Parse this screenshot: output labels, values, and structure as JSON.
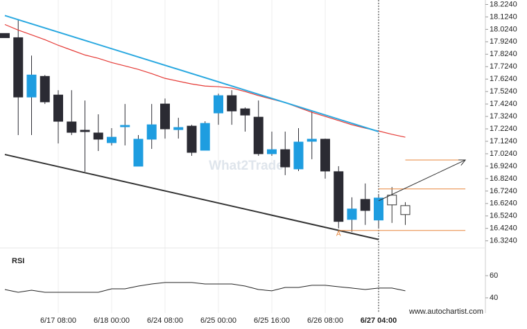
{
  "chart_data": [
    {
      "type": "candlestick",
      "categories": [
        null,
        null,
        null,
        null,
        "6/17 08:00",
        null,
        null,
        null,
        "6/18 00:00",
        null,
        null,
        null,
        "6/24 08:00",
        null,
        null,
        null,
        "6/25 00:00",
        null,
        null,
        null,
        "6/25 16:00",
        null,
        null,
        null,
        "6/26 08:00",
        null,
        null,
        null,
        "6/27 04:00",
        null,
        null
      ],
      "open": [
        17.991,
        17.957,
        17.48,
        17.646,
        17.496,
        17.28,
        17.213,
        17.191,
        17.113,
        17.241,
        16.924,
        17.141,
        17.424,
        17.218,
        17.246,
        17.052,
        17.352,
        17.491,
        17.385,
        17.318,
        17.024,
        17.057,
        16.902,
        17.124,
        17.141,
        16.88,
        16.496,
        16.657,
        16.491,
        16.613,
        16.535
      ],
      "high": [
        17.991,
        18.102,
        17.813,
        17.657,
        17.535,
        17.535,
        17.452,
        17.341,
        17.23,
        17.424,
        17.174,
        17.424,
        17.468,
        17.313,
        17.257,
        17.285,
        17.507,
        17.535,
        17.396,
        17.452,
        17.202,
        17.202,
        17.23,
        17.368,
        17.146,
        16.924,
        16.674,
        16.785,
        16.691,
        16.757,
        16.635
      ],
      "low": [
        17.957,
        17.174,
        17.174,
        17.424,
        17.107,
        17.174,
        16.88,
        17.046,
        17.091,
        17.091,
        16.924,
        17.063,
        17.146,
        17.146,
        17.007,
        17.052,
        17.257,
        17.257,
        17.202,
        17.007,
        17.007,
        16.852,
        16.885,
        16.98,
        16.824,
        16.424,
        16.396,
        16.452,
        16.424,
        16.468,
        16.452
      ],
      "close": [
        17.957,
        17.48,
        17.657,
        17.441,
        17.285,
        17.196,
        17.202,
        17.141,
        17.157,
        17.252,
        17.141,
        17.257,
        17.224,
        17.235,
        17.035,
        17.268,
        17.491,
        17.368,
        17.335,
        17.024,
        17.057,
        16.918,
        17.118,
        17.141,
        16.885,
        16.48,
        16.58,
        16.568,
        16.668,
        16.691,
        16.607
      ],
      "colors": [
        "#2b2b33",
        "#2b2b33",
        "#1e9de0",
        "#2b2b33",
        "#2b2b33",
        "#2b2b33",
        "#2b2b33",
        "#2b2b33",
        "#1e9de0",
        "#1e9de0",
        "#1e9de0",
        "#1e9de0",
        "#2b2b33",
        "#1e9de0",
        "#2b2b33",
        "#1e9de0",
        "#1e9de0",
        "#2b2b33",
        "#2b2b33",
        "#2b2b33",
        "#1e9de0",
        "#2b2b33",
        "#1e9de0",
        "#1e9de0",
        "#2b2b33",
        "#2b2b33",
        "#1e9de0",
        "#2b2b33",
        "#1e9de0",
        "#ffffff",
        "#ffffff"
      ],
      "ma": {
        "color": "#e53935",
        "values": [
          18.063,
          18.018,
          17.98,
          17.941,
          17.896,
          17.857,
          17.818,
          17.791,
          17.757,
          17.73,
          17.702,
          17.668,
          17.63,
          17.607,
          17.585,
          17.568,
          17.563,
          17.552,
          17.524,
          17.491,
          17.463,
          17.435,
          17.396,
          17.357,
          17.324,
          17.291,
          17.257,
          17.23,
          17.207,
          17.18,
          17.157
        ]
      },
      "lines": [
        {
          "color": "#29a8e0",
          "x": [
            0,
            28
          ],
          "values": [
            18.135,
            17.202
          ]
        },
        {
          "color": "#333333",
          "x": [
            0,
            28
          ],
          "values": [
            17.018,
            16.335
          ]
        },
        {
          "color": "#e8863a",
          "x": [
            25,
            34.5
          ],
          "values": [
            16.407,
            16.407
          ]
        },
        {
          "color": "#e8863a",
          "x": [
            28,
            34.5
          ],
          "values": [
            16.741,
            16.741
          ]
        },
        {
          "color": "#e8863a",
          "x": [
            30,
            34.5
          ],
          "values": [
            16.974,
            16.974
          ]
        },
        {
          "color": "#333333",
          "x": [
            28,
            34.5
          ],
          "values": [
            16.646,
            16.974
          ],
          "arrow": true
        }
      ],
      "annotations": [
        {
          "text": "A",
          "x": 25,
          "y": 16.38
        }
      ],
      "vline_x": 28,
      "watermark": "What2Trade",
      "ylim": [
        16.3,
        18.26
      ],
      "yticks": [
        {
          "value": 18.224,
          "label": "18.2240"
        },
        {
          "value": 18.124,
          "label": "18.1240"
        },
        {
          "value": 18.024,
          "label": "18.0240"
        },
        {
          "value": 17.924,
          "label": "17.9240"
        },
        {
          "value": 17.824,
          "label": "17.8240"
        },
        {
          "value": 17.724,
          "label": "17.7240"
        },
        {
          "value": 17.624,
          "label": "17.6240"
        },
        {
          "value": 17.524,
          "label": "17.5240"
        },
        {
          "value": 17.424,
          "label": "17.4240"
        },
        {
          "value": 17.324,
          "label": "17.3240"
        },
        {
          "value": 17.224,
          "label": "17.2240"
        },
        {
          "value": 17.124,
          "label": "17.1240"
        },
        {
          "value": 17.024,
          "label": "17.0240"
        },
        {
          "value": 16.924,
          "label": "16.9240"
        },
        {
          "value": 16.824,
          "label": "16.8240"
        },
        {
          "value": 16.724,
          "label": "16.7240"
        },
        {
          "value": 16.624,
          "label": "16.6240"
        },
        {
          "value": 16.524,
          "label": "16.5240"
        },
        {
          "value": 16.424,
          "label": "16.4240"
        },
        {
          "value": 16.324,
          "label": "16.3240"
        }
      ]
    },
    {
      "type": "line",
      "title": "RSI",
      "color": "#222222",
      "values": [
        47.5,
        45,
        46.9,
        45,
        45,
        45,
        45,
        45,
        48.1,
        48.1,
        50.6,
        52.5,
        53.8,
        53.8,
        53.8,
        52.5,
        52.5,
        52.5,
        50.6,
        47.5,
        46.3,
        49.4,
        49.4,
        51.3,
        51.3,
        50,
        48.8,
        47.5,
        48.8,
        48.8,
        46.3
      ],
      "ylim": [
        30,
        80
      ],
      "yticks": [
        60,
        40
      ]
    }
  ],
  "footer": "www.autochartist.com"
}
